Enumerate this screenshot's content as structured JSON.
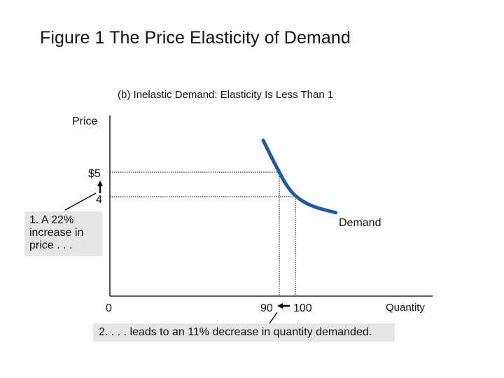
{
  "figure_title": "Figure 1 The Price Elasticity of Demand",
  "chart_data": {
    "type": "line",
    "title": "(b) Inelastic Demand: Elasticity Is Less Than 1",
    "ylabel": "Price",
    "xlabel": "Quantity",
    "y_tick_labels": [
      "$5",
      "4"
    ],
    "x_tick_labels": [
      "0",
      "90",
      "100"
    ],
    "series": [
      {
        "name": "Demand",
        "x": [
          80,
          83,
          86,
          88,
          90,
          94,
          100,
          110,
          125
        ],
        "y": [
          6.3,
          5.9,
          5.5,
          5.25,
          5.0,
          4.5,
          4.0,
          3.6,
          3.35
        ]
      }
    ],
    "reference_points": [
      {
        "x": 90,
        "y": 5
      },
      {
        "x": 100,
        "y": 4
      }
    ],
    "annotations": {
      "price_change": "1. A 22% increase in price . . .",
      "quantity_change": "2. . . . leads to an 11% decrease in quantity demanded."
    },
    "colors": {
      "curve": "#1f5a9e",
      "note_bg": "#e5e5e5",
      "axis": "#000000"
    }
  }
}
